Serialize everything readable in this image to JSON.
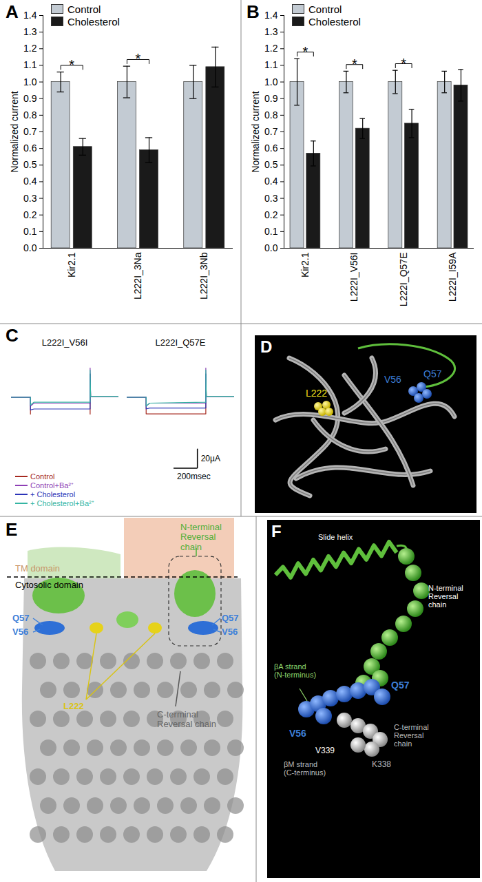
{
  "chart_data": [
    {
      "type": "bar",
      "title": "A",
      "ylabel": "Normalized current",
      "categories": [
        "Kir2.1",
        "L222I_3Na",
        "L222I_3Nb"
      ],
      "series": [
        {
          "name": "Control",
          "color": "#c3cbd3",
          "values": [
            1.0,
            1.0,
            1.0
          ],
          "errors": [
            0.06,
            0.095,
            0.1
          ]
        },
        {
          "name": "Cholesterol",
          "color": "#1a1a1a",
          "values": [
            0.61,
            0.59,
            1.09
          ],
          "errors": [
            0.05,
            0.075,
            0.12
          ]
        }
      ],
      "significance": [
        "*",
        "*",
        null
      ],
      "ylim": [
        0,
        1.4
      ],
      "yticks": [
        {
          "value": 0,
          "label": "0.0"
        },
        0.1,
        0.2,
        0.3,
        0.4,
        0.5,
        0.6,
        0.7,
        0.8,
        0.9,
        {
          "value": 1,
          "label": "1.0"
        },
        1.1,
        1.2,
        1.3,
        1.4
      ],
      "legend": "top-left"
    },
    {
      "type": "bar",
      "title": "B",
      "ylabel": "Normalized current",
      "categories": [
        "Kir2.1",
        "L222I_V56I",
        "L222I_Q57E",
        "L222I_I59A"
      ],
      "series": [
        {
          "name": "Control",
          "color": "#c3cbd3",
          "values": [
            1.0,
            1.0,
            1.0,
            1.0
          ],
          "errors": [
            0.14,
            0.065,
            0.07,
            0.065
          ]
        },
        {
          "name": "Cholesterol",
          "color": "#1a1a1a",
          "values": [
            0.57,
            0.72,
            0.75,
            0.98
          ],
          "errors": [
            0.075,
            0.06,
            0.085,
            0.095
          ]
        }
      ],
      "significance": [
        "*",
        "*",
        "*",
        null
      ],
      "ylim": [
        0,
        1.4
      ],
      "yticks": [
        {
          "value": 0,
          "label": "0.0"
        },
        0.1,
        0.2,
        0.3,
        0.4,
        0.5,
        0.6,
        0.7,
        0.8,
        0.9,
        {
          "value": 1,
          "label": "1.0"
        },
        1.1,
        1.2,
        1.3,
        1.4
      ],
      "legend": "top-left"
    },
    {
      "type": "line",
      "title": "C",
      "subplot_titles": [
        "L222I_V56I",
        "L222I_Q57E"
      ],
      "x": [
        -160,
        0,
        0,
        30,
        500,
        500,
        504,
        520,
        740
      ],
      "xlim": [
        -160,
        740
      ],
      "ylim": [
        -18,
        30
      ],
      "tick_labels": false,
      "series": [
        {
          "name": "Control",
          "color": "#a5291f",
          "values": [
            [
              0,
              0,
              -18,
              -18,
              -18,
              24,
              1,
              1,
              1
            ],
            [
              0,
              0,
              -17,
              -17,
              -17,
              24,
              1,
              1,
              1
            ]
          ]
        },
        {
          "name": "Control+Ba²⁺",
          "color": "#8e3fb5",
          "values": [
            [
              0,
              0,
              -9,
              -6,
              -6,
              30,
              1,
              1,
              1
            ],
            [
              0,
              0,
              -9,
              -6,
              -6,
              30,
              1,
              1,
              1
            ]
          ]
        },
        {
          "name": "+ Cholesterol",
          "color": "#2b34b8",
          "values": [
            [
              0,
              0,
              -13,
              -12,
              -12,
              24,
              1,
              1,
              1
            ],
            [
              0,
              0,
              -12,
              -11,
              -11,
              24,
              1,
              1,
              1
            ]
          ]
        },
        {
          "name": "+ Cholesterol+Ba²⁺",
          "color": "#35b5a3",
          "values": [
            [
              0,
              0,
              -8,
              -5,
              -5,
              28,
              1,
              1,
              1
            ],
            [
              0,
              0,
              -9,
              -6,
              -5,
              28,
              1,
              1,
              1
            ]
          ]
        }
      ],
      "scale_bar": {
        "x": 200,
        "x_label": "200msec",
        "y": 20,
        "y_label": "20µA"
      },
      "legend": "bottom-left"
    }
  ],
  "diagrams": [
    {
      "title": "D",
      "labels": [
        {
          "text": "L222",
          "color": "#f2e21c"
        },
        {
          "text": "V56",
          "color": "#3d7fd9"
        },
        {
          "text": "Q57",
          "color": "#3d7fd9"
        }
      ]
    },
    {
      "title": "E",
      "labels": [
        {
          "text": "TM domain",
          "color": "#c8956a"
        },
        {
          "text": "Cytosolic domain",
          "color": "#000000"
        },
        {
          "text": "N-terminal Reversal chain",
          "color": "#4caf3a"
        },
        {
          "text": "Q57",
          "color": "#3d7fd9"
        },
        {
          "text": "V56",
          "color": "#3d7fd9"
        },
        {
          "text": "Q57",
          "color": "#3d7fd9"
        },
        {
          "text": "V56",
          "color": "#3d7fd9"
        },
        {
          "text": "L222",
          "color": "#d9c414"
        },
        {
          "text": "C-terminal Reversal chain",
          "color": "#666666"
        }
      ]
    },
    {
      "title": "F",
      "labels": [
        {
          "text": "Slide helix",
          "color": "#ffffff"
        },
        {
          "text": "N-terminal Reversal chain",
          "color": "#ffffff"
        },
        {
          "text": "βA strand (N-terminus)",
          "color": "#8fd46a"
        },
        {
          "text": "Q57",
          "color": "#3d7fd9"
        },
        {
          "text": "V56",
          "color": "#3d7fd9"
        },
        {
          "text": "V339",
          "color": "#ffffff"
        },
        {
          "text": "βM strand (C-terminus)",
          "color": "#bbbbbb"
        },
        {
          "text": "K338",
          "color": "#bbbbbb"
        },
        {
          "text": "C-terminal Reversal chain",
          "color": "#bbbbbb"
        }
      ]
    }
  ]
}
